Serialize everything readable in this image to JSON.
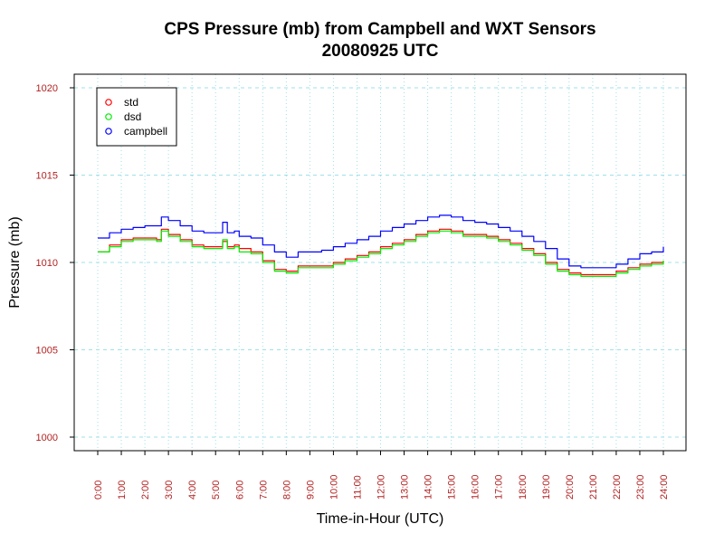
{
  "chart_data": {
    "type": "line",
    "title": "CPS Pressure (mb) from Campbell and WXT Sensors",
    "subtitle": "20080925  UTC",
    "xlabel": "Time-in-Hour (UTC)",
    "ylabel": "Pressure (mb)",
    "xlim": [
      0,
      24
    ],
    "ylim": [
      1000,
      1020
    ],
    "grid": true,
    "legend_position": "top-left",
    "x_ticks": [
      0,
      1,
      2,
      3,
      4,
      5,
      6,
      7,
      8,
      9,
      10,
      11,
      12,
      13,
      14,
      15,
      16,
      17,
      18,
      19,
      20,
      21,
      22,
      23,
      24
    ],
    "x_tick_labels": [
      "0:00",
      "1:00",
      "2:00",
      "3:00",
      "4:00",
      "5:00",
      "6:00",
      "7:00",
      "8:00",
      "9:00",
      "10:00",
      "11:00",
      "12:00",
      "13:00",
      "14:00",
      "15:00",
      "16:00",
      "17:00",
      "18:00",
      "19:00",
      "20:00",
      "21:00",
      "22:00",
      "23:00",
      "24:00"
    ],
    "y_ticks": [
      1000,
      1005,
      1010,
      1015,
      1020
    ],
    "y_tick_labels": [
      "1000",
      "1005",
      "1010",
      "1015",
      "1020"
    ],
    "series": [
      {
        "name": "std",
        "color": "#ff0000",
        "x": [
          0,
          0.5,
          1,
          1.5,
          2,
          2.5,
          2.7,
          3,
          3.5,
          4,
          4.5,
          5,
          5.3,
          5.5,
          5.8,
          6,
          6.5,
          7,
          7.5,
          8,
          8.5,
          9,
          9.5,
          10,
          10.5,
          11,
          11.5,
          12,
          12.5,
          13,
          13.5,
          14,
          14.5,
          15,
          15.5,
          16,
          16.5,
          17,
          17.5,
          18,
          18.5,
          19,
          19.5,
          20,
          20.5,
          21,
          21.5,
          22,
          22.5,
          23,
          23.5,
          24
        ],
        "values": [
          1010.6,
          1011.0,
          1011.3,
          1011.4,
          1011.4,
          1011.3,
          1011.9,
          1011.6,
          1011.3,
          1011.0,
          1010.9,
          1010.9,
          1011.2,
          1010.9,
          1011.0,
          1010.8,
          1010.6,
          1010.1,
          1009.6,
          1009.5,
          1009.8,
          1009.8,
          1009.8,
          1010.0,
          1010.2,
          1010.4,
          1010.6,
          1010.9,
          1011.1,
          1011.3,
          1011.6,
          1011.8,
          1011.9,
          1011.8,
          1011.6,
          1011.6,
          1011.5,
          1011.3,
          1011.1,
          1010.8,
          1010.5,
          1010.0,
          1009.6,
          1009.4,
          1009.3,
          1009.3,
          1009.3,
          1009.5,
          1009.7,
          1009.9,
          1010.0,
          1010.1
        ]
      },
      {
        "name": "dsd",
        "color": "#00ee00",
        "x": [
          0,
          0.5,
          1,
          1.5,
          2,
          2.5,
          2.7,
          3,
          3.5,
          4,
          4.5,
          5,
          5.3,
          5.5,
          5.8,
          6,
          6.5,
          7,
          7.5,
          8,
          8.5,
          9,
          9.5,
          10,
          10.5,
          11,
          11.5,
          12,
          12.5,
          13,
          13.5,
          14,
          14.5,
          15,
          15.5,
          16,
          16.5,
          17,
          17.5,
          18,
          18.5,
          19,
          19.5,
          20,
          20.5,
          21,
          21.5,
          22,
          22.5,
          23,
          23.5,
          24
        ],
        "values": [
          1010.6,
          1010.9,
          1011.2,
          1011.3,
          1011.3,
          1011.2,
          1011.8,
          1011.5,
          1011.2,
          1010.9,
          1010.8,
          1010.8,
          1011.3,
          1010.8,
          1010.9,
          1010.6,
          1010.5,
          1010.0,
          1009.5,
          1009.4,
          1009.7,
          1009.7,
          1009.7,
          1009.9,
          1010.1,
          1010.3,
          1010.5,
          1010.8,
          1011.0,
          1011.2,
          1011.5,
          1011.7,
          1011.8,
          1011.7,
          1011.5,
          1011.5,
          1011.4,
          1011.2,
          1011.0,
          1010.7,
          1010.4,
          1009.9,
          1009.5,
          1009.3,
          1009.2,
          1009.2,
          1009.2,
          1009.4,
          1009.6,
          1009.8,
          1009.9,
          1010.1
        ]
      },
      {
        "name": "campbell",
        "color": "#0000ff",
        "x": [
          0,
          0.5,
          1,
          1.5,
          2,
          2.5,
          2.7,
          3,
          3.5,
          4,
          4.5,
          5,
          5.3,
          5.5,
          5.8,
          6,
          6.5,
          7,
          7.5,
          8,
          8.5,
          9,
          9.5,
          10,
          10.5,
          11,
          11.5,
          12,
          12.5,
          13,
          13.5,
          14,
          14.5,
          15,
          15.5,
          16,
          16.5,
          17,
          17.5,
          18,
          18.5,
          19,
          19.5,
          20,
          20.5,
          21,
          21.5,
          22,
          22.5,
          23,
          23.5,
          24
        ],
        "values": [
          1011.4,
          1011.7,
          1011.9,
          1012.0,
          1012.1,
          1012.1,
          1012.6,
          1012.4,
          1012.1,
          1011.8,
          1011.7,
          1011.7,
          1012.3,
          1011.7,
          1011.8,
          1011.5,
          1011.4,
          1011.0,
          1010.6,
          1010.3,
          1010.6,
          1010.6,
          1010.7,
          1010.9,
          1011.1,
          1011.3,
          1011.5,
          1011.8,
          1012.0,
          1012.2,
          1012.4,
          1012.6,
          1012.7,
          1012.6,
          1012.4,
          1012.3,
          1012.2,
          1012.0,
          1011.8,
          1011.5,
          1011.2,
          1010.8,
          1010.2,
          1009.8,
          1009.7,
          1009.7,
          1009.7,
          1009.9,
          1010.2,
          1010.5,
          1010.6,
          1010.9
        ]
      }
    ]
  }
}
